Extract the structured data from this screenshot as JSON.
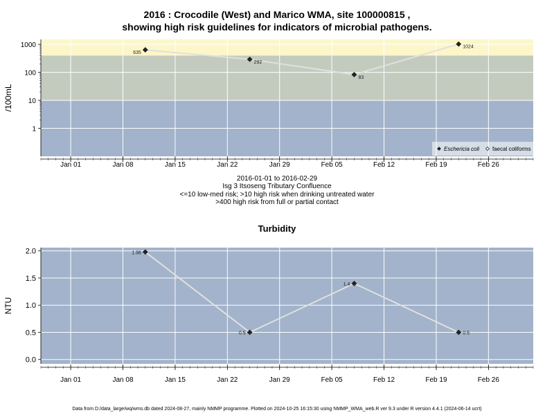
{
  "header": {
    "title_line1": "2016 : Crocodile (West) and Marico WMA, site 100000815 ,",
    "title_line2": "showing high risk guidelines for indicators of microbial pathogens."
  },
  "info": {
    "date_range": "2016-01-01 to 2016-02-29",
    "site_name": "Isg 3 Itsoseng Tributary Confluence",
    "risk_line1": "<=10 low-med risk; >10 high risk when drinking untreated water",
    "risk_line2": ">400 high risk from full or partial contact"
  },
  "footer": {
    "text": "Data from D:/data_large/wq/wms.db dated 2024-08-27, mainly NMMP programme. Plotted on 2024-10-25 16:15:30 using NMMP_WMA_web.R ver 9.3 under R version 4.4.1 (2024-06-14 ucrt)"
  },
  "colors": {
    "band_low": "#a2b3cb",
    "band_mid": "#c3cbbf",
    "band_high": "#fdf6c8",
    "line": "#e0e0e0",
    "marker": "#222222",
    "grid": "#ffffff"
  },
  "chart_data": [
    {
      "type": "line",
      "title": "",
      "ylabel": "/100mL",
      "yscale": "log",
      "ylim": [
        0.1,
        1500
      ],
      "yticks": [
        1,
        10,
        100,
        1000
      ],
      "ytick_labels": [
        "1",
        "10",
        "100",
        "1000"
      ],
      "xlim": [
        "2015-12-28",
        "2016-03-03"
      ],
      "xticks": [
        "2016-01-01",
        "2016-01-08",
        "2016-01-15",
        "2016-01-22",
        "2016-01-29",
        "2016-02-05",
        "2016-02-12",
        "2016-02-19",
        "2016-02-26"
      ],
      "xtick_labels": [
        "Jan 01",
        "Jan 08",
        "Jan 15",
        "Jan 22",
        "Jan 29",
        "Feb 05",
        "Feb 12",
        "Feb 19",
        "Feb 26"
      ],
      "bands": [
        {
          "from": 0.1,
          "to": 10,
          "color": "band_low"
        },
        {
          "from": 10,
          "to": 400,
          "color": "band_mid"
        },
        {
          "from": 400,
          "to": 1500,
          "color": "band_high"
        }
      ],
      "series": [
        {
          "name": "Eschericia coli",
          "marker": "filled-diamond",
          "x": [
            "2016-01-11",
            "2016-01-25",
            "2016-02-08",
            "2016-02-22"
          ],
          "values": [
            635,
            292,
            83,
            1024
          ],
          "labels": [
            "635",
            "292",
            "83",
            "1024"
          ],
          "label_side": [
            "left",
            "right",
            "right",
            "right"
          ]
        }
      ],
      "legend": {
        "position": "bottom-right",
        "entries": [
          {
            "name": "Eschericia coli",
            "marker": "filled-diamond",
            "italic": true
          },
          {
            "name": "faecal coliforms",
            "marker": "open-diamond",
            "italic": false
          }
        ]
      },
      "grid": true
    },
    {
      "type": "line",
      "title": "Turbidity",
      "ylabel": "NTU",
      "yscale": "linear",
      "ylim": [
        -0.08,
        2.06
      ],
      "yticks": [
        0,
        0.5,
        1,
        1.5,
        2
      ],
      "ytick_labels": [
        "0.0",
        "0.5",
        "1.0",
        "1.5",
        "2.0"
      ],
      "xlim": [
        "2015-12-28",
        "2016-03-03"
      ],
      "xticks": [
        "2016-01-01",
        "2016-01-08",
        "2016-01-15",
        "2016-01-22",
        "2016-01-29",
        "2016-02-05",
        "2016-02-12",
        "2016-02-19",
        "2016-02-26"
      ],
      "xtick_labels": [
        "Jan 01",
        "Jan 08",
        "Jan 15",
        "Jan 22",
        "Jan 29",
        "Feb 05",
        "Feb 12",
        "Feb 19",
        "Feb 26"
      ],
      "bands": [
        {
          "from": -0.08,
          "to": 2.06,
          "color": "band_low"
        }
      ],
      "series": [
        {
          "name": "",
          "marker": "filled-diamond",
          "x": [
            "2016-01-11",
            "2016-01-25",
            "2016-02-08",
            "2016-02-22"
          ],
          "values": [
            1.98,
            0.5,
            1.4,
            0.5
          ],
          "labels": [
            "1.98",
            "0.5",
            "1.4",
            "0.5"
          ],
          "label_side": [
            "left",
            "left",
            "left",
            "right"
          ]
        }
      ],
      "grid": true
    }
  ]
}
